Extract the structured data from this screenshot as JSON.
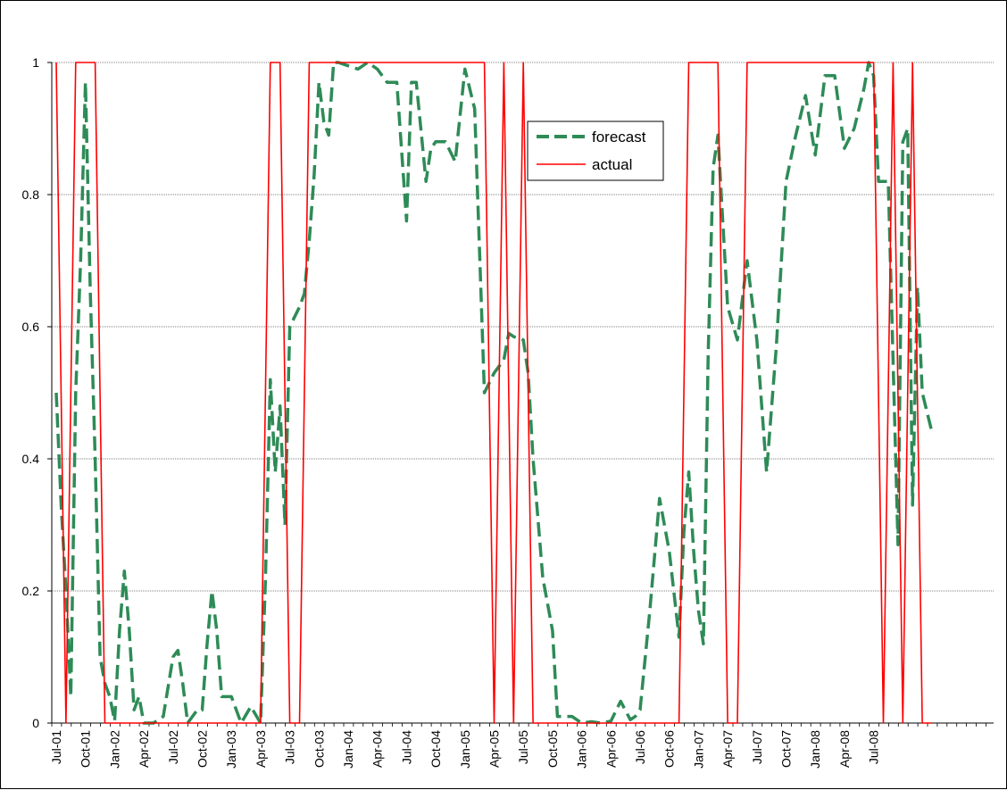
{
  "chart_data": {
    "type": "line",
    "title": "",
    "xlabel": "",
    "ylabel": "",
    "ylim": [
      0,
      1
    ],
    "y_ticks": [
      "0",
      "0.2",
      "0.4",
      "0.6",
      "0.8",
      "1"
    ],
    "grid": "horizontal",
    "legend_position": "top-center",
    "x_tick_labels": [
      "Jul-01",
      "Oct-01",
      "Jan-02",
      "Apr-02",
      "Jul-02",
      "Oct-02",
      "Jan-03",
      "Apr-03",
      "Jul-03",
      "Oct-03",
      "Jan-04",
      "Apr-04",
      "Jul-04",
      "Oct-04",
      "Jan-05",
      "Apr-05",
      "Jul-05",
      "Oct-05",
      "Jan-06",
      "Apr-06",
      "Jul-06",
      "Oct-06",
      "Jan-07",
      "Apr-07",
      "Jul-07",
      "Oct-07",
      "Jan-08",
      "Apr-08",
      "Jul-08"
    ],
    "x_range_months": [
      0,
      88
    ],
    "series": [
      {
        "name": "forecast",
        "color": "#2e8b57",
        "style": "dashed",
        "points": [
          [
            0,
            0.5
          ],
          [
            0.5,
            0.33
          ],
          [
            1,
            0.2
          ],
          [
            1.5,
            0.04
          ],
          [
            2,
            0.5
          ],
          [
            2.5,
            0.7
          ],
          [
            3,
            0.97
          ],
          [
            3.5,
            0.65
          ],
          [
            4,
            0.4
          ],
          [
            4.5,
            0.1
          ],
          [
            5,
            0.06
          ],
          [
            5.5,
            0.04
          ],
          [
            6,
            0.003
          ],
          [
            6.5,
            0.14
          ],
          [
            7,
            0.23
          ],
          [
            7.5,
            0.14
          ],
          [
            8,
            0.02
          ],
          [
            8.5,
            0.04
          ],
          [
            9,
            0.0
          ],
          [
            10,
            0.0
          ],
          [
            11,
            0.01
          ],
          [
            12,
            0.1
          ],
          [
            12.5,
            0.11
          ],
          [
            13,
            0.06
          ],
          [
            13.5,
            0.0
          ],
          [
            14,
            0.01
          ],
          [
            14.5,
            0.02
          ],
          [
            15,
            0.02
          ],
          [
            15.5,
            0.12
          ],
          [
            16,
            0.2
          ],
          [
            16.5,
            0.14
          ],
          [
            17,
            0.04
          ],
          [
            18,
            0.04
          ],
          [
            19,
            0.0
          ],
          [
            20,
            0.025
          ],
          [
            21,
            0.0
          ],
          [
            21.5,
            0.22
          ],
          [
            22,
            0.52
          ],
          [
            22.5,
            0.38
          ],
          [
            23,
            0.48
          ],
          [
            23.5,
            0.3
          ],
          [
            24,
            0.6
          ],
          [
            25,
            0.63
          ],
          [
            25.5,
            0.65
          ],
          [
            26,
            0.73
          ],
          [
            26.5,
            0.83
          ],
          [
            27,
            0.97
          ],
          [
            27.5,
            0.91
          ],
          [
            28,
            0.89
          ],
          [
            28.5,
            1.0
          ],
          [
            29,
            1.0
          ],
          [
            31,
            0.99
          ],
          [
            32,
            1.0
          ],
          [
            33,
            0.99
          ],
          [
            34,
            0.97
          ],
          [
            35,
            0.97
          ],
          [
            36,
            0.76
          ],
          [
            36.5,
            0.97
          ],
          [
            37,
            0.97
          ],
          [
            38,
            0.82
          ],
          [
            38.5,
            0.87
          ],
          [
            39,
            0.88
          ],
          [
            40,
            0.88
          ],
          [
            41,
            0.85
          ],
          [
            42,
            0.99
          ],
          [
            43,
            0.93
          ],
          [
            44,
            0.5
          ],
          [
            45,
            0.53
          ],
          [
            46,
            0.55
          ],
          [
            46.5,
            0.59
          ],
          [
            47,
            0.585
          ],
          [
            48,
            0.58
          ],
          [
            48.5,
            0.53
          ],
          [
            49,
            0.4
          ],
          [
            50,
            0.22
          ],
          [
            51,
            0.14
          ],
          [
            51.5,
            0.01
          ],
          [
            52,
            0.01
          ],
          [
            53,
            0.01
          ],
          [
            54,
            0.0
          ],
          [
            55,
            0.002
          ],
          [
            56,
            0.0
          ],
          [
            57,
            0.003
          ],
          [
            58,
            0.033
          ],
          [
            59,
            0.005
          ],
          [
            59.5,
            0.01
          ],
          [
            60,
            0.02
          ],
          [
            61,
            0.17
          ],
          [
            62,
            0.34
          ],
          [
            63,
            0.26
          ],
          [
            64,
            0.13
          ],
          [
            64.5,
            0.29
          ],
          [
            65,
            0.38
          ],
          [
            65.5,
            0.26
          ],
          [
            66,
            0.17
          ],
          [
            66.5,
            0.12
          ],
          [
            67,
            0.56
          ],
          [
            67.5,
            0.84
          ],
          [
            68,
            0.89
          ],
          [
            68.5,
            0.76
          ],
          [
            69,
            0.63
          ],
          [
            70,
            0.58
          ],
          [
            71,
            0.7
          ],
          [
            72,
            0.58
          ],
          [
            73,
            0.38
          ],
          [
            74,
            0.57
          ],
          [
            75,
            0.82
          ],
          [
            76,
            0.89
          ],
          [
            77,
            0.95
          ],
          [
            78,
            0.86
          ],
          [
            79,
            0.98
          ],
          [
            80,
            0.98
          ],
          [
            81,
            0.87
          ],
          [
            82,
            0.9
          ],
          [
            83,
            0.96
          ],
          [
            83.5,
            1.0
          ],
          [
            84,
            0.98
          ],
          [
            84.5,
            0.82
          ],
          [
            85.5,
            0.82
          ],
          [
            86.5,
            0.27
          ],
          [
            87,
            0.88
          ],
          [
            87.5,
            0.9
          ],
          [
            88,
            0.33
          ],
          [
            88.5,
            0.66
          ],
          [
            89,
            0.5
          ],
          [
            90,
            0.44
          ]
        ]
      },
      {
        "name": "actual",
        "color": "#ff0000",
        "style": "solid",
        "points": [
          [
            0,
            1
          ],
          [
            1,
            0
          ],
          [
            2,
            1
          ],
          [
            3,
            1
          ],
          [
            4,
            1
          ],
          [
            5,
            0
          ],
          [
            21,
            0
          ],
          [
            22,
            1
          ],
          [
            23,
            1
          ],
          [
            24,
            0
          ],
          [
            25,
            0
          ],
          [
            26,
            1
          ],
          [
            44,
            1
          ],
          [
            45,
            0
          ],
          [
            46,
            1
          ],
          [
            47,
            0
          ],
          [
            48,
            1
          ],
          [
            49,
            0
          ],
          [
            64,
            0
          ],
          [
            65,
            1
          ],
          [
            68,
            1
          ],
          [
            69,
            0
          ],
          [
            70,
            0
          ],
          [
            71,
            1
          ],
          [
            84,
            1
          ],
          [
            85,
            0
          ],
          [
            86,
            1
          ],
          [
            87,
            0
          ],
          [
            88,
            1
          ],
          [
            89,
            0
          ],
          [
            90,
            0
          ]
        ]
      }
    ]
  }
}
